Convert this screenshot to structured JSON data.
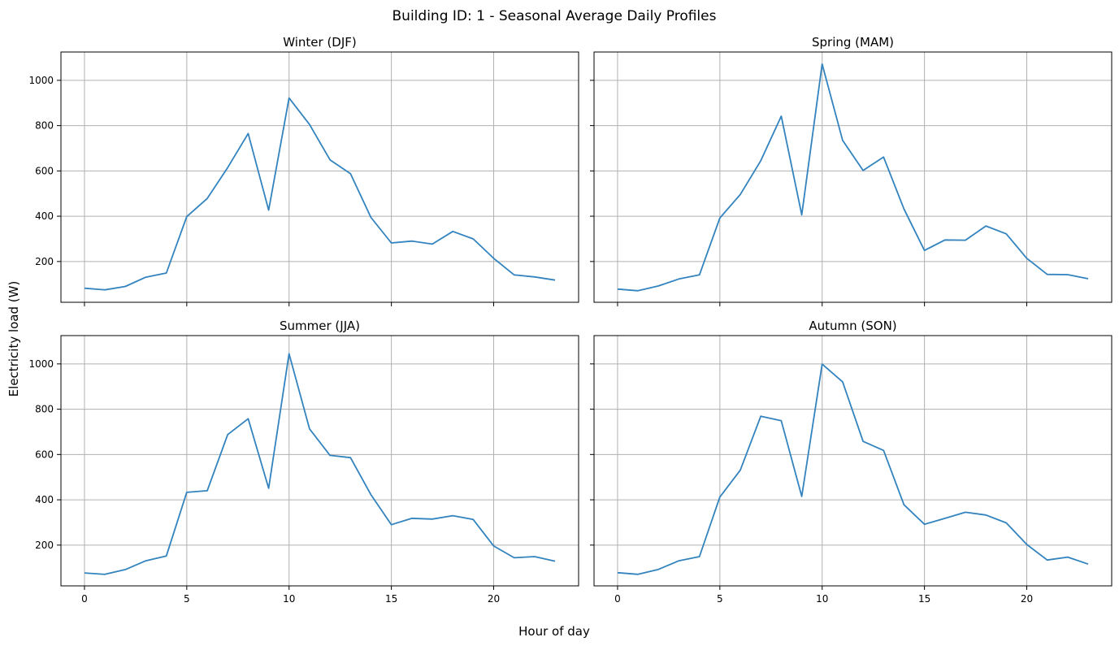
{
  "chart_data": {
    "type": "line",
    "title": "Building ID: 1 - Seasonal Average Daily Profiles",
    "xlabel": "Hour of day",
    "ylabel": "Electricity load (W)",
    "xlim": [
      -1.15,
      24.15
    ],
    "ylim": [
      20,
      1125
    ],
    "xticks": [
      0,
      5,
      10,
      15,
      20
    ],
    "yticks": [
      200,
      400,
      600,
      800,
      1000
    ],
    "grid": true,
    "shared_x": true,
    "shared_y": true,
    "series_color": "#3283be",
    "x": [
      0,
      1,
      2,
      3,
      4,
      5,
      6,
      7,
      8,
      9,
      10,
      11,
      12,
      13,
      14,
      15,
      16,
      17,
      18,
      19,
      20,
      21,
      22,
      23
    ],
    "panels": [
      {
        "title": "Winter (DJF)",
        "values": [
          82,
          75,
          90,
          131,
          149,
          398,
          478,
          615,
          765,
          427,
          922,
          805,
          649,
          588,
          395,
          282,
          290,
          277,
          333,
          300,
          214,
          141,
          132,
          118
        ]
      },
      {
        "title": "Spring (MAM)",
        "values": [
          78,
          71,
          92,
          123,
          141,
          392,
          496,
          645,
          842,
          406,
          1072,
          735,
          602,
          661,
          432,
          249,
          295,
          294,
          357,
          322,
          214,
          143,
          142,
          124
        ]
      },
      {
        "title": "Summer (JJA)",
        "values": [
          77,
          71,
          92,
          131,
          152,
          433,
          440,
          688,
          758,
          451,
          1045,
          713,
          596,
          586,
          423,
          290,
          318,
          315,
          330,
          313,
          196,
          144,
          149,
          129
        ]
      },
      {
        "title": "Autumn (SON)",
        "values": [
          78,
          71,
          93,
          131,
          149,
          412,
          531,
          769,
          749,
          415,
          999,
          921,
          658,
          618,
          378,
          292,
          318,
          345,
          333,
          298,
          203,
          134,
          147,
          116
        ]
      }
    ]
  }
}
